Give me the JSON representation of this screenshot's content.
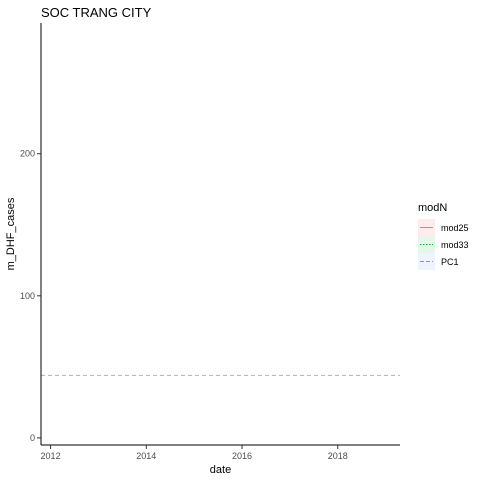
{
  "chart_data": {
    "type": "line",
    "title": "SOC TRANG CITY",
    "xlabel": "date",
    "ylabel": "m_DHF_cases",
    "x_ticks": [
      "2012",
      "2014",
      "2016",
      "2018"
    ],
    "y_ticks": [
      0,
      100,
      200
    ],
    "xlim": [
      2011.8,
      2019.3
    ],
    "ylim": [
      -5,
      292
    ],
    "grid": false,
    "legend": {
      "title": "modN",
      "position": "right",
      "entries": [
        {
          "name": "mod25",
          "color": "#F8766D",
          "linetype": "solid",
          "fill": "#fdeceb"
        },
        {
          "name": "mod33",
          "color": "#00BA38",
          "linetype": "dotted",
          "fill": "#e6f6ea"
        },
        {
          "name": "PC1",
          "color": "#619CFF",
          "linetype": "dashed",
          "fill": "#eef3fd"
        }
      ]
    },
    "reference_line": {
      "y": 44,
      "linetype": "dashed",
      "color": "#b3b3b3"
    },
    "series": []
  }
}
